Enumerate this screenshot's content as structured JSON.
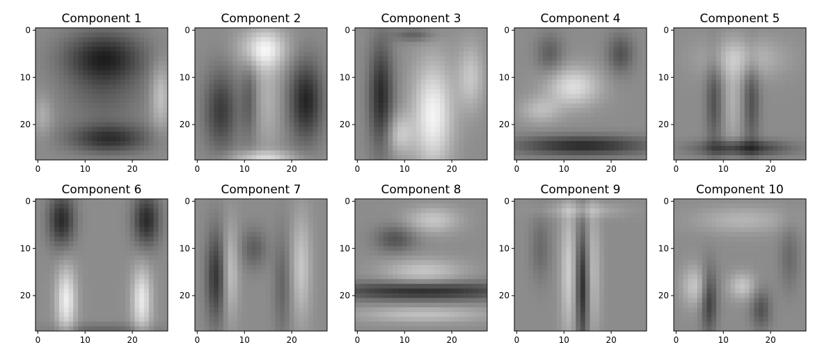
{
  "chart_data": [
    {
      "type": "heatmap",
      "title": "Component 1",
      "xticks": [
        "0",
        "10",
        "20"
      ],
      "yticks": [
        "0",
        "10",
        "20"
      ],
      "xlim": [
        -0.5,
        27.5
      ],
      "ylim": [
        27.5,
        -0.5
      ],
      "colormap": "gray"
    },
    {
      "type": "heatmap",
      "title": "Component 2",
      "xticks": [
        "0",
        "10",
        "20"
      ],
      "yticks": [
        "0",
        "10",
        "20"
      ],
      "xlim": [
        -0.5,
        27.5
      ],
      "ylim": [
        27.5,
        -0.5
      ],
      "colormap": "gray"
    },
    {
      "type": "heatmap",
      "title": "Component 3",
      "xticks": [
        "0",
        "10",
        "20"
      ],
      "yticks": [
        "0",
        "10",
        "20"
      ],
      "xlim": [
        -0.5,
        27.5
      ],
      "ylim": [
        27.5,
        -0.5
      ],
      "colormap": "gray"
    },
    {
      "type": "heatmap",
      "title": "Component 4",
      "xticks": [
        "0",
        "10",
        "20"
      ],
      "yticks": [
        "0",
        "10",
        "20"
      ],
      "xlim": [
        -0.5,
        27.5
      ],
      "ylim": [
        27.5,
        -0.5
      ],
      "colormap": "gray"
    },
    {
      "type": "heatmap",
      "title": "Component 5",
      "xticks": [
        "0",
        "10",
        "20"
      ],
      "yticks": [
        "0",
        "10",
        "20"
      ],
      "xlim": [
        -0.5,
        27.5
      ],
      "ylim": [
        27.5,
        -0.5
      ],
      "colormap": "gray"
    },
    {
      "type": "heatmap",
      "title": "Component 6",
      "xticks": [
        "0",
        "10",
        "20"
      ],
      "yticks": [
        "0",
        "10",
        "20"
      ],
      "xlim": [
        -0.5,
        27.5
      ],
      "ylim": [
        27.5,
        -0.5
      ],
      "colormap": "gray"
    },
    {
      "type": "heatmap",
      "title": "Component 7",
      "xticks": [
        "0",
        "10",
        "20"
      ],
      "yticks": [
        "0",
        "10",
        "20"
      ],
      "xlim": [
        -0.5,
        27.5
      ],
      "ylim": [
        27.5,
        -0.5
      ],
      "colormap": "gray"
    },
    {
      "type": "heatmap",
      "title": "Component 8",
      "xticks": [
        "0",
        "10",
        "20"
      ],
      "yticks": [
        "0",
        "10",
        "20"
      ],
      "xlim": [
        -0.5,
        27.5
      ],
      "ylim": [
        27.5,
        -0.5
      ],
      "colormap": "gray"
    },
    {
      "type": "heatmap",
      "title": "Component 9",
      "xticks": [
        "0",
        "10",
        "20"
      ],
      "yticks": [
        "0",
        "10",
        "20"
      ],
      "xlim": [
        -0.5,
        27.5
      ],
      "ylim": [
        27.5,
        -0.5
      ],
      "colormap": "gray"
    },
    {
      "type": "heatmap",
      "title": "Component 10",
      "xticks": [
        "0",
        "10",
        "20"
      ],
      "yticks": [
        "0",
        "10",
        "20"
      ],
      "xlim": [
        -0.5,
        27.5
      ],
      "ylim": [
        27.5,
        -0.5
      ],
      "colormap": "gray"
    }
  ]
}
